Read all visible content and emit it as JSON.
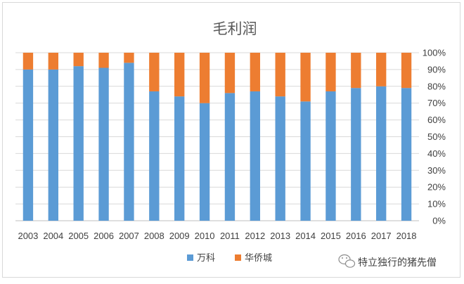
{
  "chart_data": {
    "type": "bar",
    "stacked": "percent",
    "title": "毛利润",
    "categories": [
      "2003",
      "2004",
      "2005",
      "2006",
      "2007",
      "2008",
      "2009",
      "2010",
      "2011",
      "2012",
      "2013",
      "2014",
      "2015",
      "2016",
      "2017",
      "2018"
    ],
    "series": [
      {
        "name": "万科",
        "color": "#5b9bd5",
        "values": [
          90,
          90,
          92,
          91,
          94,
          77,
          74,
          70,
          76,
          77,
          74,
          71,
          77,
          79,
          80,
          79
        ]
      },
      {
        "name": "华侨城",
        "color": "#ed7d31",
        "values": [
          10,
          10,
          8,
          9,
          6,
          23,
          26,
          30,
          24,
          23,
          26,
          29,
          23,
          21,
          20,
          21
        ]
      }
    ],
    "y_axis": {
      "position": "right",
      "ylim": [
        0,
        100
      ],
      "ticks": [
        "0%",
        "10%",
        "20%",
        "30%",
        "40%",
        "50%",
        "60%",
        "70%",
        "80%",
        "90%",
        "100%"
      ]
    },
    "grid": true,
    "legend": "bottom"
  },
  "watermark": {
    "text": "特立独行的猪先僧",
    "icon": "wechat-icon"
  }
}
